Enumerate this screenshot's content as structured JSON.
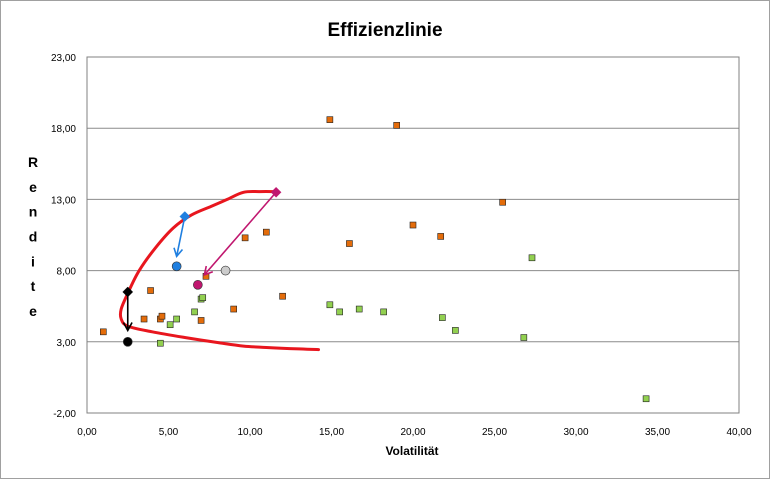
{
  "chart_data": {
    "type": "scatter",
    "title": "Effizienzlinie",
    "xlabel": "Volatilität",
    "ylabel": "Rendite",
    "xlim": [
      0,
      40
    ],
    "ylim": [
      -2,
      23
    ],
    "x_ticks": [
      0,
      5,
      10,
      15,
      20,
      25,
      30,
      35,
      40
    ],
    "y_ticks": [
      -2,
      3,
      8,
      13,
      18,
      23
    ],
    "x_tick_labels": [
      "0,00",
      "5,00",
      "10,00",
      "15,00",
      "20,00",
      "25,00",
      "30,00",
      "35,00",
      "40,00"
    ],
    "y_tick_labels": [
      "-2,00",
      "3,00",
      "8,00",
      "13,00",
      "18,00",
      "23,00"
    ],
    "grid": "horizontal",
    "legend": "none",
    "series": [
      {
        "name": "orange",
        "color": "#E46C0A",
        "marker": "square",
        "points": [
          [
            1.0,
            3.7
          ],
          [
            3.5,
            4.6
          ],
          [
            3.9,
            6.6
          ],
          [
            4.5,
            4.6
          ],
          [
            4.6,
            4.8
          ],
          [
            7.0,
            4.5
          ],
          [
            7.3,
            7.6
          ],
          [
            9.0,
            5.3
          ],
          [
            9.7,
            10.3
          ],
          [
            11.0,
            10.7
          ],
          [
            12.0,
            6.2
          ],
          [
            14.9,
            18.6
          ],
          [
            16.1,
            9.9
          ],
          [
            19.0,
            18.2
          ],
          [
            20.0,
            11.2
          ],
          [
            21.7,
            10.4
          ],
          [
            25.5,
            12.8
          ]
        ]
      },
      {
        "name": "green",
        "color": "#92D050",
        "marker": "square",
        "points": [
          [
            4.5,
            2.9
          ],
          [
            5.1,
            4.2
          ],
          [
            5.5,
            4.6
          ],
          [
            6.6,
            5.1
          ],
          [
            7.0,
            6.0
          ],
          [
            7.1,
            6.1
          ],
          [
            14.9,
            5.6
          ],
          [
            15.5,
            5.1
          ],
          [
            16.7,
            5.3
          ],
          [
            18.2,
            5.1
          ],
          [
            21.8,
            4.7
          ],
          [
            22.6,
            3.8
          ],
          [
            26.8,
            3.3
          ],
          [
            27.3,
            8.9
          ],
          [
            34.3,
            -1.0
          ]
        ]
      }
    ],
    "highlights": [
      {
        "name": "black-diamond",
        "color": "#000000",
        "marker": "diamond",
        "x": 2.5,
        "y": 6.5
      },
      {
        "name": "black-dot",
        "color": "#000000",
        "marker": "circle",
        "x": 2.5,
        "y": 3.0
      },
      {
        "name": "blue-diamond",
        "color": "#1F7FE0",
        "marker": "diamond",
        "x": 6.0,
        "y": 11.8
      },
      {
        "name": "blue-dot",
        "color": "#1F7FE0",
        "marker": "circle",
        "x": 5.5,
        "y": 8.3
      },
      {
        "name": "magenta-diamond",
        "color": "#C0176F",
        "marker": "diamond",
        "x": 11.6,
        "y": 13.5
      },
      {
        "name": "magenta-dot",
        "color": "#C0176F",
        "marker": "circle",
        "x": 6.8,
        "y": 7.0
      },
      {
        "name": "grey-dot",
        "color": "#CCCCCC",
        "marker": "circle",
        "x": 8.5,
        "y": 8.0
      }
    ],
    "arrows": [
      {
        "name": "black-arrow",
        "color": "#000000",
        "from": [
          2.5,
          6.5
        ],
        "to": [
          2.5,
          3.8
        ]
      },
      {
        "name": "blue-arrow",
        "color": "#1F7FE0",
        "from": [
          6.0,
          11.8
        ],
        "to": [
          5.5,
          9.0
        ]
      },
      {
        "name": "magenta-arrow",
        "color": "#C0176F",
        "from": [
          11.6,
          13.5
        ],
        "to": [
          7.2,
          7.7
        ]
      }
    ],
    "efficient_frontier": {
      "name": "Effizienzlinie",
      "color": "#E8161E",
      "points": [
        [
          14.2,
          2.45
        ],
        [
          13.0,
          2.5
        ],
        [
          11.0,
          2.6
        ],
        [
          9.6,
          2.7
        ],
        [
          8.0,
          2.95
        ],
        [
          6.0,
          3.3
        ],
        [
          4.0,
          3.7
        ],
        [
          2.5,
          4.1
        ],
        [
          2.1,
          4.6
        ],
        [
          2.1,
          5.3
        ],
        [
          2.5,
          6.4
        ],
        [
          3.2,
          8.0
        ],
        [
          4.2,
          9.6
        ],
        [
          5.3,
          11.0
        ],
        [
          6.4,
          11.9
        ],
        [
          7.6,
          12.5
        ],
        [
          8.6,
          13.0
        ],
        [
          9.6,
          13.5
        ],
        [
          10.6,
          13.55
        ],
        [
          11.6,
          13.55
        ]
      ]
    }
  }
}
